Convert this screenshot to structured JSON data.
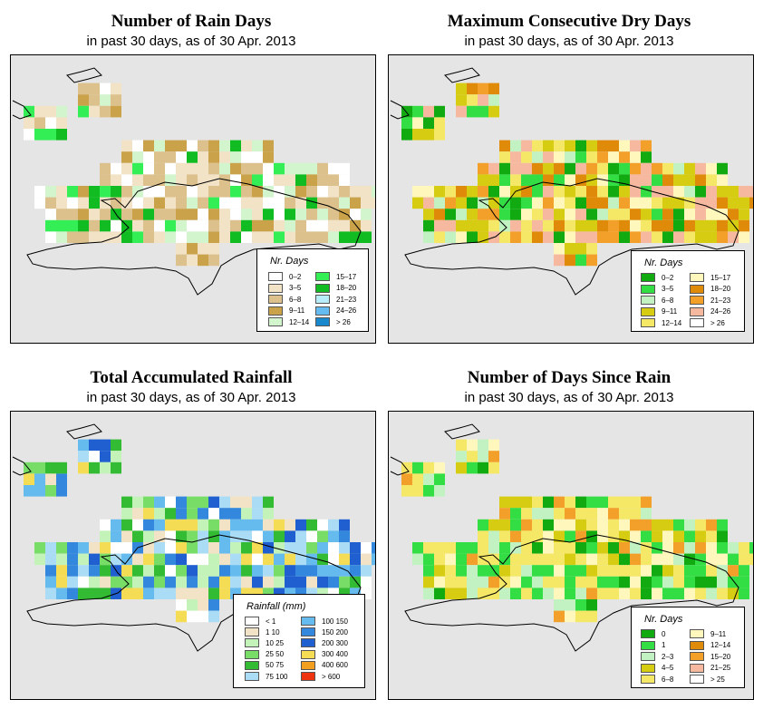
{
  "panels": [
    {
      "id": "rain-days",
      "title": "Number of Rain Days",
      "subtitle_pre": "in past 30 days, as of",
      "subtitle_date": "30 Apr. 2013",
      "legend_title": "Nr. Days",
      "legend": [
        {
          "label": "0–2",
          "color": "#ffffff"
        },
        {
          "label": "3–5",
          "color": "#f2e3c7"
        },
        {
          "label": "6–8",
          "color": "#ddc18c"
        },
        {
          "label": "9–11",
          "color": "#c9a24a"
        },
        {
          "label": "12–14",
          "color": "#d3f5ce"
        },
        {
          "label": "15–17",
          "color": "#33ee55"
        },
        {
          "label": "18–20",
          "color": "#11bb22"
        },
        {
          "label": "21–23",
          "color": "#b8ecf8"
        },
        {
          "label": "24–26",
          "color": "#66bbf0"
        },
        {
          "label": "> 26",
          "color": "#1a88cc"
        }
      ]
    },
    {
      "id": "dry-days",
      "title": "Maximum Consecutive Dry Days",
      "subtitle_pre": "in past 30 days, as of",
      "subtitle_date": "30 Apr. 2013",
      "legend_title": "Nr. Days",
      "legend": [
        {
          "label": "0–2",
          "color": "#11aa11"
        },
        {
          "label": "3–5",
          "color": "#33dd44"
        },
        {
          "label": "6–8",
          "color": "#c2f2c2"
        },
        {
          "label": "9–11",
          "color": "#d6cc11"
        },
        {
          "label": "12–14",
          "color": "#f5e866"
        },
        {
          "label": "15–17",
          "color": "#fff7bb"
        },
        {
          "label": "18–20",
          "color": "#e08a0a"
        },
        {
          "label": "21–23",
          "color": "#f3a02b"
        },
        {
          "label": "24–26",
          "color": "#f6b9a0"
        },
        {
          "label": "> 26",
          "color": "#ffffff"
        }
      ]
    },
    {
      "id": "total-rainfall",
      "title": "Total Accumulated Rainfall",
      "subtitle_pre": "in past 30 days, as of",
      "subtitle_date": "30 Apr. 2013",
      "legend_title": "Rainfall (mm)",
      "legend": [
        {
          "label": "< 1",
          "color": "#ffffff"
        },
        {
          "label": "1   10",
          "color": "#f2e3c7"
        },
        {
          "label": "10   25",
          "color": "#c3f3b9"
        },
        {
          "label": "25   50",
          "color": "#77dd66"
        },
        {
          "label": "50   75",
          "color": "#33bb33"
        },
        {
          "label": "75   100",
          "color": "#aaddf5"
        },
        {
          "label": "100   150",
          "color": "#66bbee"
        },
        {
          "label": "150   200",
          "color": "#3388dd"
        },
        {
          "label": "200   300",
          "color": "#1f5fd0"
        },
        {
          "label": "300   400",
          "color": "#f5dc55"
        },
        {
          "label": "400   600",
          "color": "#f3a020"
        },
        {
          "label": "> 600",
          "color": "#ee3311"
        }
      ]
    },
    {
      "id": "days-since-rain",
      "title": "Number of Days Since Rain",
      "subtitle_pre": "in past 30 days, as of",
      "subtitle_date": "30 Apr. 2013",
      "legend_title": "Nr. Days",
      "legend": [
        {
          "label": "0",
          "color": "#11aa11"
        },
        {
          "label": "1",
          "color": "#33dd44"
        },
        {
          "label": "2–3",
          "color": "#c2f2c2"
        },
        {
          "label": "4–5",
          "color": "#d6cc11"
        },
        {
          "label": "6–8",
          "color": "#f5e866"
        },
        {
          "label": "9–11",
          "color": "#fff7bb"
        },
        {
          "label": "12–14",
          "color": "#e08a0a"
        },
        {
          "label": "15–20",
          "color": "#f3a02b"
        },
        {
          "label": "21–25",
          "color": "#f6b9a0"
        },
        {
          "label": "> 25",
          "color": "#ffffff"
        }
      ]
    }
  ]
}
